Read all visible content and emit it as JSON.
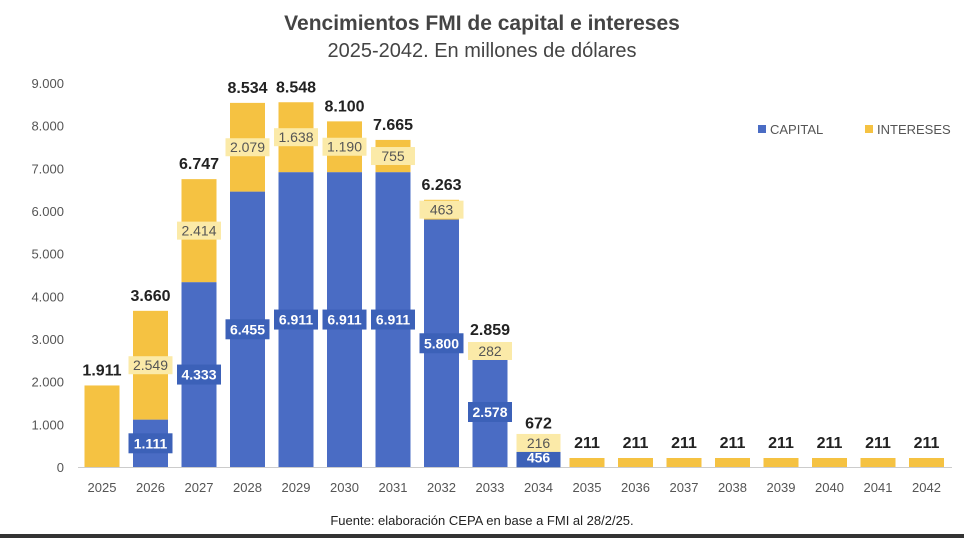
{
  "chart_data": {
    "type": "bar",
    "stacked": true,
    "title": "Vencimientos FMI de capital e intereses",
    "subtitle": "2025-2042. En millones de dólares",
    "source": "Fuente: elaboración CEPA en base a FMI al 28/2/25.",
    "categories": [
      "2025",
      "2026",
      "2027",
      "2028",
      "2029",
      "2030",
      "2031",
      "2032",
      "2033",
      "2034",
      "2035",
      "2036",
      "2037",
      "2038",
      "2039",
      "2040",
      "2041",
      "2042"
    ],
    "series": [
      {
        "name": "CAPITAL",
        "color": "#4a6cc4",
        "values": [
          0,
          1111,
          4333,
          6455,
          6911,
          6911,
          6911,
          5800,
          2578,
          456,
          0,
          0,
          0,
          0,
          0,
          0,
          0,
          0
        ]
      },
      {
        "name": "INTERESES",
        "color": "#f5c242",
        "values": [
          1911,
          2549,
          2414,
          2079,
          1638,
          1190,
          755,
          463,
          282,
          216,
          211,
          211,
          211,
          211,
          211,
          211,
          211,
          211
        ]
      }
    ],
    "totals": [
      1911,
      3660,
      6747,
      8534,
      8548,
      8100,
      7665,
      6263,
      2859,
      672,
      211,
      211,
      211,
      211,
      211,
      211,
      211,
      211
    ],
    "ylim": [
      0,
      9000
    ],
    "yticks": [
      0,
      1000,
      2000,
      3000,
      4000,
      5000,
      6000,
      7000,
      8000,
      9000
    ],
    "ytick_labels": [
      "0",
      "1.000",
      "2.000",
      "3.000",
      "4.000",
      "5.000",
      "6.000",
      "7.000",
      "8.000",
      "9.000"
    ],
    "grid": false,
    "legend_position": "top-right",
    "xlabel": "",
    "ylabel": ""
  }
}
